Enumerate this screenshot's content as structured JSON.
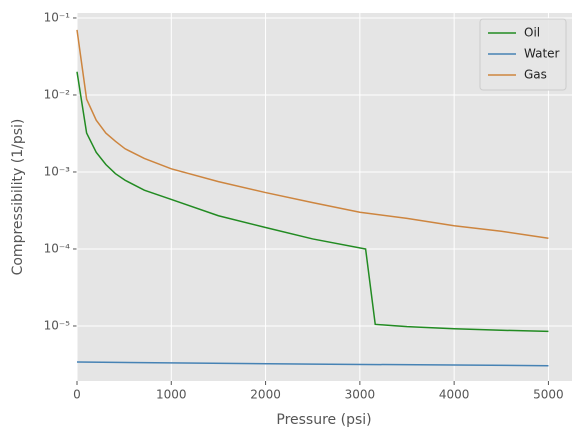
{
  "chart_data": {
    "type": "line",
    "xlabel": "Pressure (psi)",
    "ylabel": "Compressibility (1/psi)",
    "xlim": [
      0,
      5250
    ],
    "ylim": [
      1.93e-06,
      0.116
    ],
    "yscale": "log",
    "xticks": [
      0,
      1000,
      2000,
      3000,
      4000,
      5000
    ],
    "yticks": [
      {
        "value": 1e-05,
        "label": "10⁻⁵"
      },
      {
        "value": 0.0001,
        "label": "10⁻⁴"
      },
      {
        "value": 0.001,
        "label": "10⁻³"
      },
      {
        "value": 0.01,
        "label": "10⁻²"
      },
      {
        "value": 0.1,
        "label": "10⁻¹"
      }
    ],
    "grid": true,
    "legend": "upper-right",
    "series": [
      {
        "name": "Oil",
        "color": "#228b22",
        "x": [
          0,
          102,
          204,
          306,
          408,
          510,
          714,
          1000,
          1500,
          2000,
          2500,
          3061,
          3163,
          3500,
          4000,
          4500,
          5000
        ],
        "values": [
          0.02,
          0.0032,
          0.0018,
          0.00125,
          0.00095,
          0.00078,
          0.00058,
          0.00044,
          0.00027,
          0.00019,
          0.000135,
          0.0001,
          1.05e-05,
          9.8e-06,
          9.2e-06,
          8.8e-06,
          8.5e-06
        ]
      },
      {
        "name": "Water",
        "color": "#4682b4",
        "x": [
          0,
          2500,
          5000
        ],
        "values": [
          3.4e-06,
          3.2e-06,
          3.05e-06
        ]
      },
      {
        "name": "Gas",
        "color": "#cd853f",
        "x": [
          0,
          102,
          204,
          306,
          408,
          510,
          714,
          1000,
          1500,
          2000,
          2500,
          3000,
          3500,
          4000,
          4500,
          5000
        ],
        "values": [
          0.07,
          0.0088,
          0.0047,
          0.0032,
          0.0025,
          0.002,
          0.0015,
          0.0011,
          0.00075,
          0.00054,
          0.0004,
          0.0003,
          0.00025,
          0.0002,
          0.00017,
          0.000138
        ]
      }
    ]
  }
}
